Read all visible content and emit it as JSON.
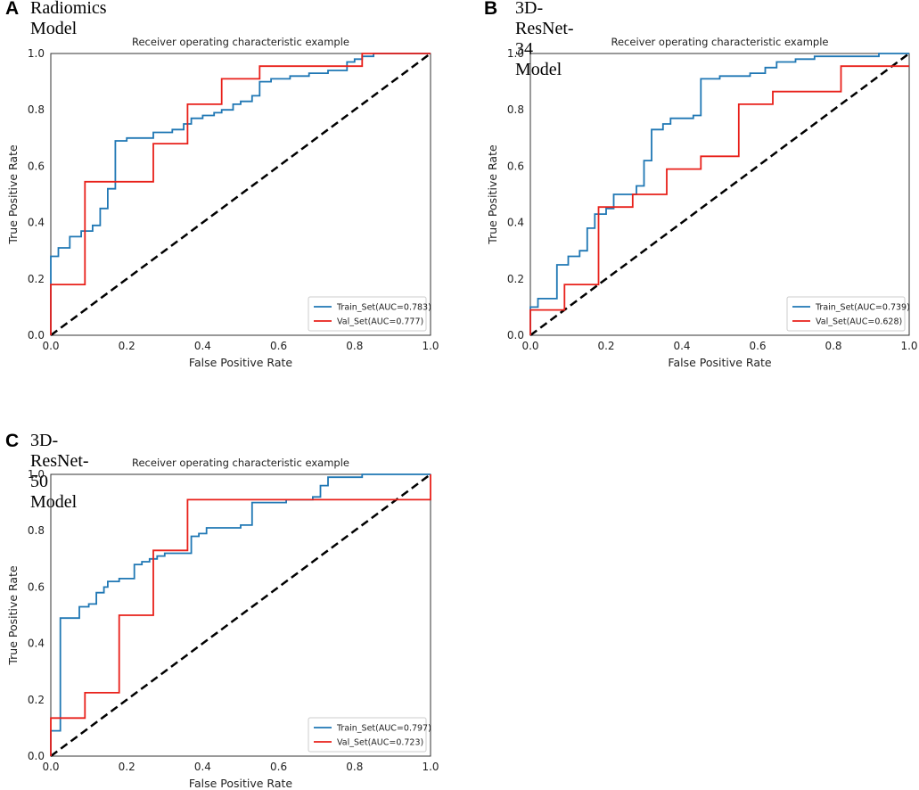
{
  "colors": {
    "train": "#1f77b4",
    "val": "#e8201a",
    "diagonal": "#000000"
  },
  "panels": [
    {
      "letter": "A",
      "title": "Radiomics Model"
    },
    {
      "letter": "B",
      "title": "3D-ResNet-34 Model"
    },
    {
      "letter": "C",
      "title": "3D-ResNet-50 Model"
    }
  ],
  "chart_data": [
    {
      "type": "line",
      "title": "Receiver operating characteristic example",
      "xlabel": "False Positive Rate",
      "ylabel": "True Positive Rate",
      "xlim": [
        0,
        1
      ],
      "ylim": [
        0,
        1
      ],
      "xticks": [
        "0.0",
        "0.2",
        "0.4",
        "0.6",
        "0.8",
        "1.0"
      ],
      "yticks": [
        "0.0",
        "0.2",
        "0.4",
        "0.6",
        "0.8",
        "1.0"
      ],
      "legend_position": "lower-right",
      "series": [
        {
          "name": "Train_Set(AUC=0.783)",
          "color": "#1f77b4",
          "x": [
            0,
            0,
            0.02,
            0.02,
            0.05,
            0.05,
            0.08,
            0.08,
            0.11,
            0.11,
            0.13,
            0.13,
            0.15,
            0.15,
            0.17,
            0.17,
            0.2,
            0.2,
            0.27,
            0.27,
            0.32,
            0.32,
            0.35,
            0.35,
            0.37,
            0.37,
            0.4,
            0.4,
            0.43,
            0.43,
            0.45,
            0.45,
            0.48,
            0.48,
            0.5,
            0.5,
            0.53,
            0.53,
            0.55,
            0.55,
            0.58,
            0.58,
            0.63,
            0.63,
            0.68,
            0.68,
            0.73,
            0.73,
            0.78,
            0.78,
            0.8,
            0.8,
            0.82,
            0.82,
            0.85,
            0.85,
            1.0
          ],
          "y": [
            0,
            0.28,
            0.28,
            0.31,
            0.31,
            0.35,
            0.35,
            0.37,
            0.37,
            0.39,
            0.39,
            0.45,
            0.45,
            0.52,
            0.52,
            0.69,
            0.69,
            0.7,
            0.7,
            0.72,
            0.72,
            0.73,
            0.73,
            0.75,
            0.75,
            0.77,
            0.77,
            0.78,
            0.78,
            0.79,
            0.79,
            0.8,
            0.8,
            0.82,
            0.82,
            0.83,
            0.83,
            0.85,
            0.85,
            0.9,
            0.9,
            0.91,
            0.91,
            0.92,
            0.92,
            0.93,
            0.93,
            0.94,
            0.94,
            0.97,
            0.97,
            0.98,
            0.98,
            0.99,
            0.99,
            1.0,
            1.0
          ]
        },
        {
          "name": "Val_Set(AUC=0.777)",
          "color": "#e8201a",
          "x": [
            0,
            0,
            0.09,
            0.09,
            0.27,
            0.27,
            0.36,
            0.36,
            0.45,
            0.45,
            0.55,
            0.55,
            0.82,
            0.82,
            1.0
          ],
          "y": [
            0,
            0.18,
            0.18,
            0.545,
            0.545,
            0.68,
            0.68,
            0.82,
            0.82,
            0.91,
            0.91,
            0.955,
            0.955,
            1.0,
            1.0
          ]
        }
      ]
    },
    {
      "type": "line",
      "title": "Receiver operating characteristic example",
      "xlabel": "False Positive Rate",
      "ylabel": "True Positive Rate",
      "xlim": [
        0,
        1
      ],
      "ylim": [
        0,
        1
      ],
      "xticks": [
        "0.0",
        "0.2",
        "0.4",
        "0.6",
        "0.8",
        "1.0"
      ],
      "yticks": [
        "0.0",
        "0.2",
        "0.4",
        "0.6",
        "0.8",
        "1.0"
      ],
      "legend_position": "lower-right",
      "series": [
        {
          "name": "Train_Set(AUC=0.739)",
          "color": "#1f77b4",
          "x": [
            0,
            0,
            0.02,
            0.02,
            0.07,
            0.07,
            0.1,
            0.1,
            0.13,
            0.13,
            0.15,
            0.15,
            0.17,
            0.17,
            0.2,
            0.2,
            0.22,
            0.22,
            0.28,
            0.28,
            0.3,
            0.3,
            0.32,
            0.32,
            0.35,
            0.35,
            0.37,
            0.37,
            0.43,
            0.43,
            0.45,
            0.45,
            0.5,
            0.5,
            0.58,
            0.58,
            0.62,
            0.62,
            0.65,
            0.65,
            0.7,
            0.7,
            0.75,
            0.75,
            0.92,
            0.92,
            1.0
          ],
          "y": [
            0,
            0.1,
            0.1,
            0.13,
            0.13,
            0.25,
            0.25,
            0.28,
            0.28,
            0.3,
            0.3,
            0.38,
            0.38,
            0.43,
            0.43,
            0.45,
            0.45,
            0.5,
            0.5,
            0.53,
            0.53,
            0.62,
            0.62,
            0.73,
            0.73,
            0.75,
            0.75,
            0.77,
            0.77,
            0.78,
            0.78,
            0.91,
            0.91,
            0.92,
            0.92,
            0.93,
            0.93,
            0.95,
            0.95,
            0.97,
            0.97,
            0.98,
            0.98,
            0.99,
            0.99,
            1.0,
            1.0
          ]
        },
        {
          "name": "Val_Set(AUC=0.628)",
          "color": "#e8201a",
          "x": [
            0,
            0,
            0.09,
            0.09,
            0.18,
            0.18,
            0.27,
            0.27,
            0.36,
            0.36,
            0.45,
            0.45,
            0.55,
            0.55,
            0.64,
            0.64,
            0.82,
            0.82,
            1.0
          ],
          "y": [
            0,
            0.09,
            0.09,
            0.18,
            0.18,
            0.455,
            0.455,
            0.5,
            0.5,
            0.59,
            0.59,
            0.635,
            0.635,
            0.82,
            0.82,
            0.865,
            0.865,
            0.955,
            0.955
          ]
        }
      ]
    },
    {
      "type": "line",
      "title": "Receiver operating characteristic example",
      "xlabel": "False Positive Rate",
      "ylabel": "True Positive Rate",
      "xlim": [
        0,
        1
      ],
      "ylim": [
        0,
        1
      ],
      "xticks": [
        "0.0",
        "0.2",
        "0.4",
        "0.6",
        "0.8",
        "1.0"
      ],
      "yticks": [
        "0.0",
        "0.2",
        "0.4",
        "0.6",
        "0.8",
        "1.0"
      ],
      "legend_position": "lower-right",
      "series": [
        {
          "name": "Train_Set(AUC=0.797)",
          "color": "#1f77b4",
          "x": [
            0,
            0,
            0.025,
            0.025,
            0.075,
            0.075,
            0.1,
            0.1,
            0.12,
            0.12,
            0.14,
            0.14,
            0.15,
            0.15,
            0.18,
            0.18,
            0.22,
            0.22,
            0.24,
            0.24,
            0.26,
            0.26,
            0.28,
            0.28,
            0.3,
            0.3,
            0.37,
            0.37,
            0.39,
            0.39,
            0.41,
            0.41,
            0.5,
            0.5,
            0.53,
            0.53,
            0.62,
            0.62,
            0.69,
            0.69,
            0.71,
            0.71,
            0.73,
            0.73,
            0.82,
            0.82,
            1.0
          ],
          "y": [
            0,
            0.09,
            0.09,
            0.49,
            0.49,
            0.53,
            0.53,
            0.54,
            0.54,
            0.58,
            0.58,
            0.6,
            0.6,
            0.62,
            0.62,
            0.63,
            0.63,
            0.68,
            0.68,
            0.69,
            0.69,
            0.7,
            0.7,
            0.71,
            0.71,
            0.72,
            0.72,
            0.78,
            0.78,
            0.79,
            0.79,
            0.81,
            0.81,
            0.82,
            0.82,
            0.9,
            0.9,
            0.91,
            0.91,
            0.92,
            0.92,
            0.96,
            0.96,
            0.99,
            0.99,
            1.0,
            1.0
          ]
        },
        {
          "name": "Val_Set(AUC=0.723)",
          "color": "#e8201a",
          "x": [
            0,
            0,
            0.09,
            0.09,
            0.18,
            0.18,
            0.27,
            0.27,
            0.36,
            0.36,
            1.0,
            1.0
          ],
          "y": [
            0,
            0.135,
            0.135,
            0.225,
            0.225,
            0.5,
            0.5,
            0.73,
            0.73,
            0.91,
            0.91,
            1.0
          ]
        }
      ]
    }
  ]
}
